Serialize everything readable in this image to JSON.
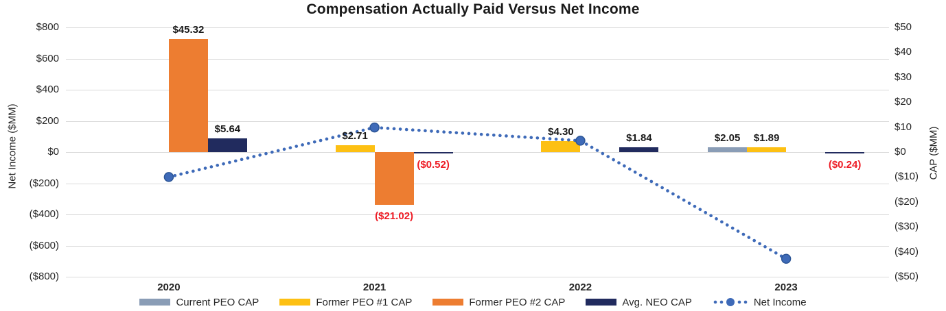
{
  "title": "Compensation Actually Paid Versus Net Income",
  "colors": {
    "current_peo": "#8A9DB6",
    "former_peo_1": "#FDC013",
    "former_peo_2": "#ED7D31",
    "avg_neo": "#212B5E",
    "net_income_line": "#3E6AB8",
    "net_income_marker_edge": "#2C5596",
    "gridline": "#D9D9D9",
    "negative_label": "#EE1C25",
    "text": "#262626"
  },
  "left_axis": {
    "title": "Net Income ($MM)",
    "min": -800,
    "max": 800,
    "step": 200,
    "ticks": [
      {
        "value": 800,
        "label": "$800"
      },
      {
        "value": 600,
        "label": "$600"
      },
      {
        "value": 400,
        "label": "$400"
      },
      {
        "value": 200,
        "label": "$200"
      },
      {
        "value": 0,
        "label": "$0"
      },
      {
        "value": -200,
        "label": "($200)"
      },
      {
        "value": -400,
        "label": "($400)"
      },
      {
        "value": -600,
        "label": "($600)"
      },
      {
        "value": -800,
        "label": "($800)"
      }
    ]
  },
  "right_axis": {
    "title": "CAP ($MM)",
    "min": -50,
    "max": 50,
    "step": 10,
    "ticks": [
      {
        "value": 50,
        "label": "$50"
      },
      {
        "value": 40,
        "label": "$40"
      },
      {
        "value": 30,
        "label": "$30"
      },
      {
        "value": 20,
        "label": "$20"
      },
      {
        "value": 10,
        "label": "$10"
      },
      {
        "value": 0,
        "label": "$0"
      },
      {
        "value": -10,
        "label": "($10)"
      },
      {
        "value": -20,
        "label": "($20)"
      },
      {
        "value": -30,
        "label": "($30)"
      },
      {
        "value": -40,
        "label": "($40)"
      },
      {
        "value": -50,
        "label": "($50)"
      }
    ]
  },
  "chart_data": {
    "type": "bar",
    "subtype": "grouped-bars-with-line-dual-axis",
    "categories": [
      "2020",
      "2021",
      "2022",
      "2023"
    ],
    "series": [
      {
        "name": "Current PEO CAP",
        "axis": "right",
        "color": "#8A9DB6",
        "values": [
          null,
          null,
          null,
          2.05
        ],
        "labels": [
          null,
          null,
          null,
          "$2.05"
        ]
      },
      {
        "name": "Former PEO #1 CAP",
        "axis": "right",
        "color": "#FDC013",
        "values": [
          null,
          2.71,
          4.3,
          1.89
        ],
        "labels": [
          null,
          "$2.71",
          "$4.30",
          "$1.89"
        ]
      },
      {
        "name": "Former PEO #2 CAP",
        "axis": "right",
        "color": "#ED7D31",
        "values": [
          45.32,
          -21.02,
          null,
          null
        ],
        "labels": [
          "$45.32",
          "($21.02)",
          null,
          null
        ]
      },
      {
        "name": "Avg. NEO CAP",
        "axis": "right",
        "color": "#212B5E",
        "values": [
          5.64,
          -0.52,
          1.84,
          -0.24
        ],
        "labels": [
          "$5.64",
          "($0.52)",
          "$1.84",
          "($0.24)"
        ]
      }
    ],
    "line_series": {
      "name": "Net Income",
      "axis": "left",
      "color": "#3E6AB8",
      "style": "dotted-with-markers",
      "values": [
        -160,
        158,
        73,
        -685
      ]
    },
    "grid": true,
    "legend_position": "bottom"
  },
  "legend": [
    {
      "label": "Current PEO CAP",
      "swatch": "bar",
      "color": "#8A9DB6"
    },
    {
      "label": "Former PEO #1 CAP",
      "swatch": "bar",
      "color": "#FDC013"
    },
    {
      "label": "Former PEO #2 CAP",
      "swatch": "bar",
      "color": "#ED7D31"
    },
    {
      "label": "Avg. NEO CAP",
      "swatch": "bar",
      "color": "#212B5E"
    },
    {
      "label": "Net Income",
      "swatch": "dotted-line",
      "color": "#3E6AB8"
    }
  ]
}
